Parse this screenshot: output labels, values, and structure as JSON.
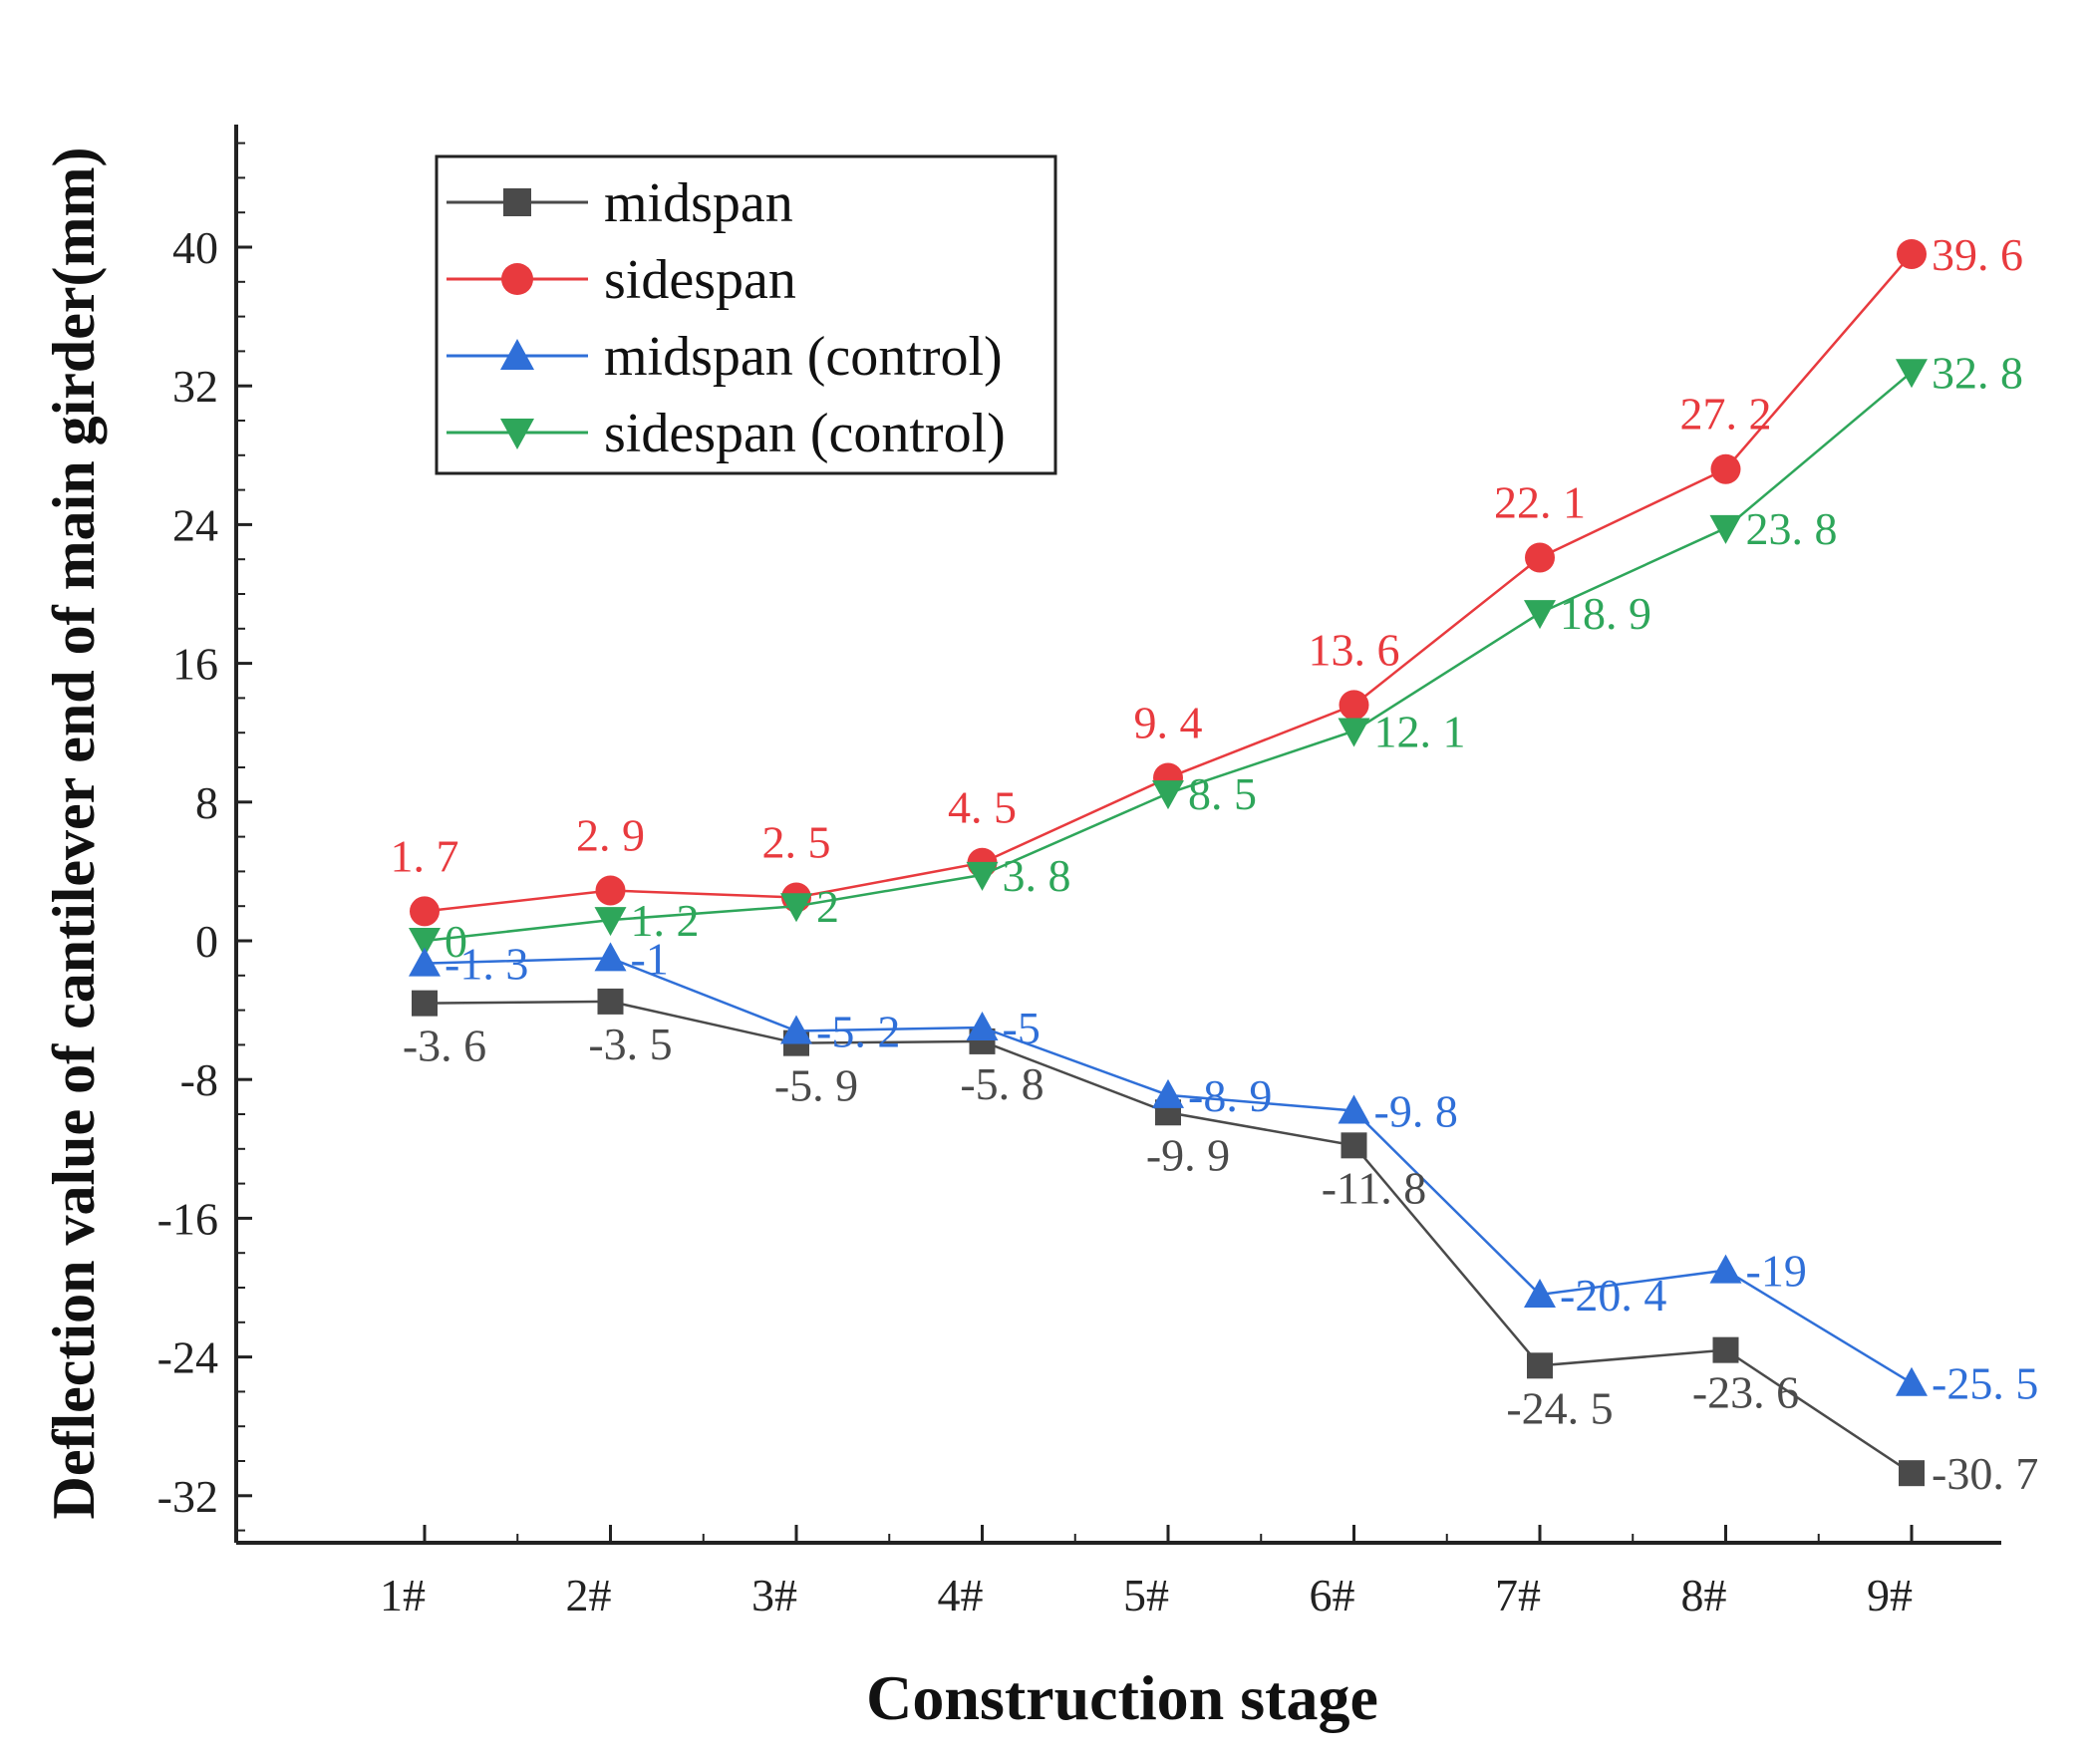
{
  "chart_data": {
    "type": "line",
    "xlabel": "Construction stage",
    "ylabel": "Deflection value of cantilever end of main girder(mm)",
    "categories": [
      "1#",
      "2#",
      "3#",
      "4#",
      "5#",
      "6#",
      "7#",
      "8#",
      "9#"
    ],
    "yticks": [
      -32,
      -24,
      -16,
      -8,
      0,
      8,
      16,
      24,
      32,
      40
    ],
    "ytick_labels": [
      "-32",
      "-24",
      "-16",
      "-8",
      "0",
      "8",
      "16",
      "24",
      "32",
      "40"
    ],
    "ylim": [
      -35,
      47
    ],
    "grid": false,
    "legend_position": "top-left",
    "series": [
      {
        "name": "midspan",
        "color": "#4a4a4a",
        "marker": "square",
        "values": [
          -3.6,
          -3.5,
          -5.9,
          -5.8,
          -9.9,
          -11.8,
          -24.5,
          -23.6,
          -30.7
        ],
        "labels": [
          "-3. 6",
          "-3. 5",
          "-5. 9",
          "-5. 8",
          "-9. 9",
          "-11. 8",
          "-24. 5",
          "-23. 6",
          "-30. 7"
        ]
      },
      {
        "name": "sidespan",
        "color": "#e83a3e",
        "marker": "circle",
        "values": [
          1.7,
          2.9,
          2.5,
          4.5,
          9.4,
          13.6,
          22.1,
          27.2,
          39.6
        ],
        "labels": [
          "1. 7",
          "2. 9",
          "2. 5",
          "4. 5",
          "9. 4",
          "13. 6",
          "22. 1",
          "27. 2",
          "39. 6"
        ]
      },
      {
        "name": "midspan (control)",
        "color": "#2f6fd8",
        "marker": "triangle-up",
        "values": [
          -1.3,
          -1,
          -5.2,
          -5,
          -8.9,
          -9.8,
          -20.4,
          -19,
          -25.5
        ],
        "labels": [
          "-1. 3",
          "-1",
          "-5. 2",
          "-5",
          "-8. 9",
          "-9. 8",
          "-20. 4",
          "-19",
          "-25. 5"
        ]
      },
      {
        "name": "sidespan (control)",
        "color": "#2ea65a",
        "marker": "triangle-down",
        "values": [
          0,
          1.2,
          2,
          3.8,
          8.5,
          12.1,
          18.9,
          23.8,
          32.8
        ],
        "labels": [
          "0",
          "1. 2",
          "2",
          "3. 8",
          "8. 5",
          "12. 1",
          "18. 9",
          "23. 8",
          "32. 8"
        ]
      }
    ]
  }
}
